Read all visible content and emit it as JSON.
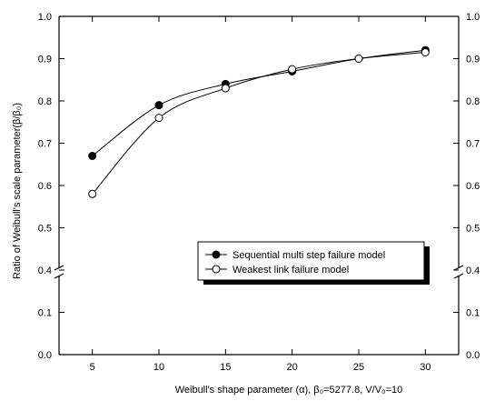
{
  "chart_data": {
    "type": "line",
    "title": "",
    "xlabel": "Weibull's shape parameter (α), β₀=5277.8, V/V₀=10",
    "ylabel": "Ratio of Weibull's scale parameter(β/β₀)",
    "xlim": [
      2.5,
      32.5
    ],
    "x_ticks": [
      5,
      10,
      15,
      20,
      25,
      30
    ],
    "x_tick_labels": [
      "5",
      "10",
      "15",
      "20",
      "25",
      "30"
    ],
    "ylim": [
      0.0,
      1.0
    ],
    "y_axis_break": [
      0.2,
      0.4
    ],
    "y_ticks": [
      0.0,
      0.1,
      0.4,
      0.5,
      0.6,
      0.7,
      0.8,
      0.9,
      1.0
    ],
    "y_tick_labels": [
      "0.0",
      "0.1",
      "0.4",
      "0.5",
      "0.6",
      "0.7",
      "0.8",
      "0.9",
      "1.0"
    ],
    "grid": false,
    "legend_position": "lower-right",
    "series": [
      {
        "name": "Sequential multi step failure model",
        "marker": "filled-circle",
        "x": [
          5,
          10,
          15,
          20,
          25,
          30
        ],
        "values": [
          0.67,
          0.79,
          0.84,
          0.87,
          0.9,
          0.92
        ]
      },
      {
        "name": "Weakest link failure model",
        "marker": "open-circle",
        "x": [
          5,
          10,
          15,
          20,
          25,
          30
        ],
        "values": [
          0.58,
          0.76,
          0.83,
          0.875,
          0.9,
          0.915
        ]
      }
    ]
  }
}
